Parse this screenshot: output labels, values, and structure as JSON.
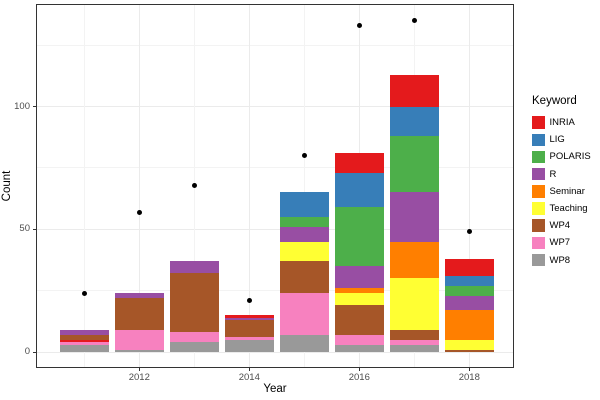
{
  "chart_data": {
    "type": "bar",
    "stacked": true,
    "title": "",
    "xlabel": "Year",
    "ylabel": "Count",
    "legend_title": "Keyword",
    "legend_position": "right",
    "grid": true,
    "ylim": [
      0,
      142
    ],
    "y_ticks": [
      0,
      50,
      100
    ],
    "x_ticks": [
      2012,
      2014,
      2016,
      2018
    ],
    "keywords": [
      {
        "name": "INRIA",
        "color": "#e41a1c"
      },
      {
        "name": "LIG",
        "color": "#377eb8"
      },
      {
        "name": "POLARIS",
        "color": "#4daf4a"
      },
      {
        "name": "R",
        "color": "#984ea3"
      },
      {
        "name": "Seminar",
        "color": "#ff7f00"
      },
      {
        "name": "Teaching",
        "color": "#ffff33"
      },
      {
        "name": "WP4",
        "color": "#a65628"
      },
      {
        "name": "WP7",
        "color": "#f781bf"
      },
      {
        "name": "WP8",
        "color": "#999999"
      }
    ],
    "bars": [
      {
        "year": 2011,
        "total": 9,
        "segments": [
          {
            "keyword": "WP8",
            "value": 3
          },
          {
            "keyword": "WP7",
            "value": 1
          },
          {
            "keyword": "INRIA",
            "value": 1
          },
          {
            "keyword": "WP4",
            "value": 2
          },
          {
            "keyword": "R",
            "value": 2
          }
        ]
      },
      {
        "year": 2012,
        "total": 24,
        "segments": [
          {
            "keyword": "WP8",
            "value": 1
          },
          {
            "keyword": "WP7",
            "value": 8
          },
          {
            "keyword": "WP4",
            "value": 13
          },
          {
            "keyword": "R",
            "value": 2
          }
        ]
      },
      {
        "year": 2013,
        "total": 37,
        "segments": [
          {
            "keyword": "WP8",
            "value": 4
          },
          {
            "keyword": "WP7",
            "value": 4
          },
          {
            "keyword": "WP4",
            "value": 24
          },
          {
            "keyword": "R",
            "value": 5
          }
        ]
      },
      {
        "year": 2014,
        "total": 15,
        "segments": [
          {
            "keyword": "WP8",
            "value": 5
          },
          {
            "keyword": "WP7",
            "value": 1
          },
          {
            "keyword": "WP4",
            "value": 7
          },
          {
            "keyword": "R",
            "value": 1
          },
          {
            "keyword": "INRIA",
            "value": 1
          }
        ]
      },
      {
        "year": 2015,
        "total": 65,
        "segments": [
          {
            "keyword": "WP8",
            "value": 7
          },
          {
            "keyword": "WP7",
            "value": 17
          },
          {
            "keyword": "WP4",
            "value": 13
          },
          {
            "keyword": "Teaching",
            "value": 8
          },
          {
            "keyword": "R",
            "value": 6
          },
          {
            "keyword": "POLARIS",
            "value": 4
          },
          {
            "keyword": "LIG",
            "value": 10
          }
        ]
      },
      {
        "year": 2016,
        "total": 81,
        "segments": [
          {
            "keyword": "WP8",
            "value": 3
          },
          {
            "keyword": "WP7",
            "value": 4
          },
          {
            "keyword": "WP4",
            "value": 12
          },
          {
            "keyword": "Teaching",
            "value": 5
          },
          {
            "keyword": "Seminar",
            "value": 2
          },
          {
            "keyword": "R",
            "value": 9
          },
          {
            "keyword": "POLARIS",
            "value": 24
          },
          {
            "keyword": "LIG",
            "value": 14
          },
          {
            "keyword": "INRIA",
            "value": 8
          }
        ]
      },
      {
        "year": 2017,
        "total": 113,
        "segments": [
          {
            "keyword": "WP8",
            "value": 3
          },
          {
            "keyword": "WP7",
            "value": 2
          },
          {
            "keyword": "WP4",
            "value": 4
          },
          {
            "keyword": "Teaching",
            "value": 21
          },
          {
            "keyword": "Seminar",
            "value": 15
          },
          {
            "keyword": "R",
            "value": 20
          },
          {
            "keyword": "POLARIS",
            "value": 23
          },
          {
            "keyword": "LIG",
            "value": 12
          },
          {
            "keyword": "INRIA",
            "value": 13
          }
        ]
      },
      {
        "year": 2018,
        "total": 38,
        "segments": [
          {
            "keyword": "WP4",
            "value": 1
          },
          {
            "keyword": "Teaching",
            "value": 4
          },
          {
            "keyword": "Seminar",
            "value": 12
          },
          {
            "keyword": "R",
            "value": 6
          },
          {
            "keyword": "POLARIS",
            "value": 4
          },
          {
            "keyword": "LIG",
            "value": 4
          },
          {
            "keyword": "INRIA",
            "value": 7
          }
        ]
      }
    ],
    "points": [
      {
        "year": 2011,
        "value": 24
      },
      {
        "year": 2012,
        "value": 57
      },
      {
        "year": 2013,
        "value": 68
      },
      {
        "year": 2014,
        "value": 21
      },
      {
        "year": 2015,
        "value": 80
      },
      {
        "year": 2016,
        "value": 133
      },
      {
        "year": 2017,
        "value": 135
      },
      {
        "year": 2018,
        "value": 49
      }
    ],
    "colors": {
      "panel_background": "#ffffff",
      "panel_border": "#333333",
      "grid_major": "#ebebeb",
      "grid_minor": "#f3f3f3",
      "axis_text": "#4d4d4d",
      "point": "#000000"
    }
  }
}
